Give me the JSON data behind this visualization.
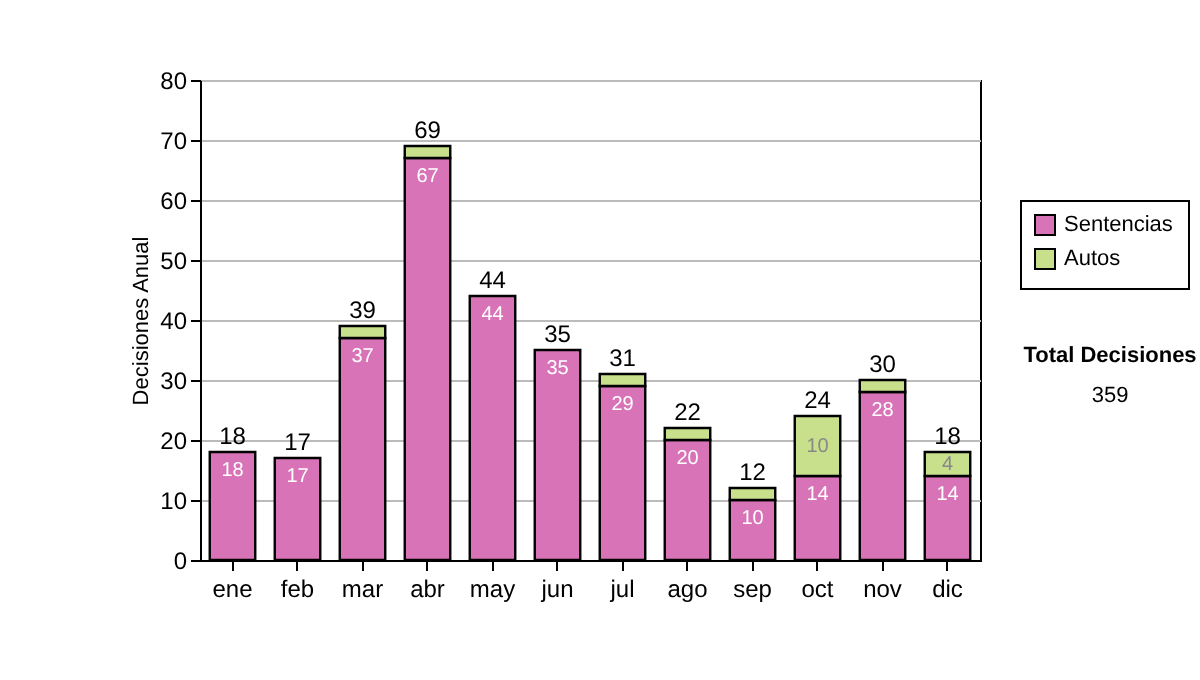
{
  "chart_data": {
    "type": "bar",
    "stacked": true,
    "ylabel": "Decisiones Anual",
    "categories": [
      "ene",
      "feb",
      "mar",
      "abr",
      "may",
      "jun",
      "jul",
      "ago",
      "sep",
      "oct",
      "nov",
      "dic"
    ],
    "series": [
      {
        "name": "Sentencias",
        "color": "#d873b8",
        "values": [
          18,
          17,
          37,
          67,
          44,
          35,
          29,
          20,
          10,
          14,
          28,
          14
        ],
        "value_labels": [
          "18",
          "17",
          "37",
          "67",
          "44",
          "35",
          "29",
          "20",
          "10",
          "14",
          "28",
          "14"
        ]
      },
      {
        "name": "Autos",
        "color": "#c8e08c",
        "values": [
          null,
          null,
          2,
          2,
          null,
          null,
          2,
          2,
          2,
          10,
          2,
          4
        ],
        "value_labels": [
          null,
          null,
          null,
          null,
          null,
          null,
          null,
          null,
          null,
          "10",
          null,
          "4"
        ]
      }
    ],
    "totals": [
      "18",
      "17",
      "39",
      "69",
      "44",
      "35",
      "31",
      "22",
      "12",
      "24",
      "30",
      "18"
    ],
    "ylim": [
      0,
      80
    ],
    "yticks": [
      0,
      10,
      20,
      30,
      40,
      50,
      60,
      70,
      80
    ],
    "grid": "y",
    "legend": "right",
    "annotations": [
      "Total Decisiones",
      "359"
    ]
  }
}
